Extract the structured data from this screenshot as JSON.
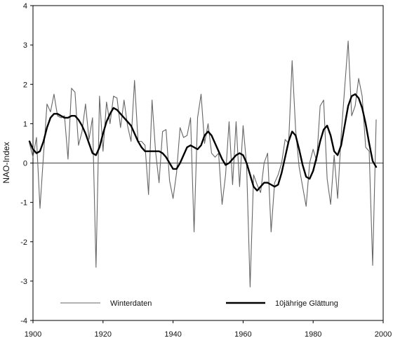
{
  "chart_data": {
    "type": "line",
    "title": "",
    "xlabel": "",
    "ylabel": "NAO-Index",
    "xlim": [
      1900,
      2000
    ],
    "ylim": [
      -4,
      4
    ],
    "xticks": [
      1900,
      1920,
      1940,
      1960,
      1980,
      2000
    ],
    "yticks": [
      -4,
      -3,
      -2,
      -1,
      0,
      1,
      2,
      3,
      4
    ],
    "grid": false,
    "zero_line": true,
    "legend_position": "bottom-inside",
    "series": [
      {
        "name": "Winterdaten",
        "color": "#666666",
        "x": [
          1899,
          1900,
          1901,
          1902,
          1903,
          1904,
          1905,
          1906,
          1907,
          1908,
          1909,
          1910,
          1911,
          1912,
          1913,
          1914,
          1915,
          1916,
          1917,
          1918,
          1919,
          1920,
          1921,
          1922,
          1923,
          1924,
          1925,
          1926,
          1927,
          1928,
          1929,
          1930,
          1931,
          1932,
          1933,
          1934,
          1935,
          1936,
          1937,
          1938,
          1939,
          1940,
          1941,
          1942,
          1943,
          1944,
          1945,
          1946,
          1947,
          1948,
          1949,
          1950,
          1951,
          1952,
          1953,
          1954,
          1955,
          1956,
          1957,
          1958,
          1959,
          1960,
          1961,
          1962,
          1963,
          1964,
          1965,
          1966,
          1967,
          1968,
          1969,
          1970,
          1971,
          1972,
          1973,
          1974,
          1975,
          1976,
          1977,
          1978,
          1979,
          1980,
          1981,
          1982,
          1983,
          1984,
          1985,
          1986,
          1987,
          1988,
          1989,
          1990,
          1991,
          1992,
          1993,
          1994,
          1995,
          1996,
          1997,
          1998
        ],
        "values": [
          0.5,
          0.15,
          0.65,
          -1.15,
          0.2,
          1.5,
          1.3,
          1.75,
          1.2,
          1.15,
          1.2,
          0.1,
          1.9,
          1.8,
          0.45,
          0.8,
          1.5,
          0.6,
          1.15,
          -2.65,
          1.7,
          0.3,
          1.55,
          1.0,
          1.7,
          1.65,
          0.9,
          1.6,
          0.95,
          0.55,
          2.1,
          0.55,
          0.55,
          0.45,
          -0.8,
          1.6,
          0.3,
          -0.5,
          0.8,
          0.85,
          -0.45,
          -0.9,
          -0.25,
          0.9,
          0.65,
          0.7,
          1.15,
          -1.75,
          1.15,
          1.75,
          0.5,
          1.0,
          0.25,
          0.15,
          0.25,
          -1.05,
          -0.3,
          1.05,
          -0.55,
          1.05,
          -0.6,
          0.95,
          -0.05,
          -3.15,
          -0.3,
          -0.55,
          -0.75,
          0.0,
          0.25,
          -1.75,
          -0.5,
          -0.3,
          0.0,
          0.6,
          0.5,
          2.6,
          0.85,
          -0.1,
          -0.6,
          -1.1,
          0.0,
          0.35,
          0.05,
          1.45,
          1.6,
          -0.4,
          -1.05,
          0.2,
          -0.9,
          0.7,
          1.9,
          3.1,
          1.2,
          1.45,
          2.15,
          1.7,
          0.4,
          0.3,
          -2.6,
          1.1
        ]
      },
      {
        "name": "10jährige Glättung",
        "color": "#000000",
        "x": [
          1899,
          1900,
          1901,
          1902,
          1903,
          1904,
          1905,
          1906,
          1907,
          1908,
          1909,
          1910,
          1911,
          1912,
          1913,
          1914,
          1915,
          1916,
          1917,
          1918,
          1919,
          1920,
          1921,
          1922,
          1923,
          1924,
          1925,
          1926,
          1927,
          1928,
          1929,
          1930,
          1931,
          1932,
          1933,
          1934,
          1935,
          1936,
          1937,
          1938,
          1939,
          1940,
          1941,
          1942,
          1943,
          1944,
          1945,
          1946,
          1947,
          1948,
          1949,
          1950,
          1951,
          1952,
          1953,
          1954,
          1955,
          1956,
          1957,
          1958,
          1959,
          1960,
          1961,
          1962,
          1963,
          1964,
          1965,
          1966,
          1967,
          1968,
          1969,
          1970,
          1971,
          1972,
          1973,
          1974,
          1975,
          1976,
          1977,
          1978,
          1979,
          1980,
          1981,
          1982,
          1983,
          1984,
          1985,
          1986,
          1987,
          1988,
          1989,
          1990,
          1991,
          1992,
          1993,
          1994,
          1995,
          1996,
          1997,
          1998
        ],
        "values": [
          0.55,
          0.35,
          0.25,
          0.3,
          0.55,
          0.9,
          1.15,
          1.25,
          1.25,
          1.2,
          1.15,
          1.15,
          1.2,
          1.2,
          1.1,
          0.95,
          0.75,
          0.5,
          0.25,
          0.2,
          0.4,
          0.75,
          1.05,
          1.25,
          1.4,
          1.35,
          1.25,
          1.15,
          1.05,
          0.95,
          0.75,
          0.55,
          0.4,
          0.3,
          0.3,
          0.3,
          0.3,
          0.3,
          0.25,
          0.15,
          0.0,
          -0.15,
          -0.15,
          0.0,
          0.2,
          0.4,
          0.45,
          0.4,
          0.35,
          0.45,
          0.7,
          0.8,
          0.7,
          0.5,
          0.3,
          0.1,
          -0.05,
          0.0,
          0.1,
          0.2,
          0.25,
          0.2,
          0.0,
          -0.3,
          -0.6,
          -0.7,
          -0.6,
          -0.5,
          -0.5,
          -0.55,
          -0.6,
          -0.55,
          -0.25,
          0.15,
          0.55,
          0.8,
          0.7,
          0.35,
          -0.05,
          -0.35,
          -0.4,
          -0.2,
          0.15,
          0.55,
          0.85,
          0.95,
          0.7,
          0.3,
          0.2,
          0.45,
          0.95,
          1.45,
          1.7,
          1.75,
          1.65,
          1.4,
          1.0,
          0.5,
          0.05,
          -0.1
        ]
      }
    ]
  }
}
